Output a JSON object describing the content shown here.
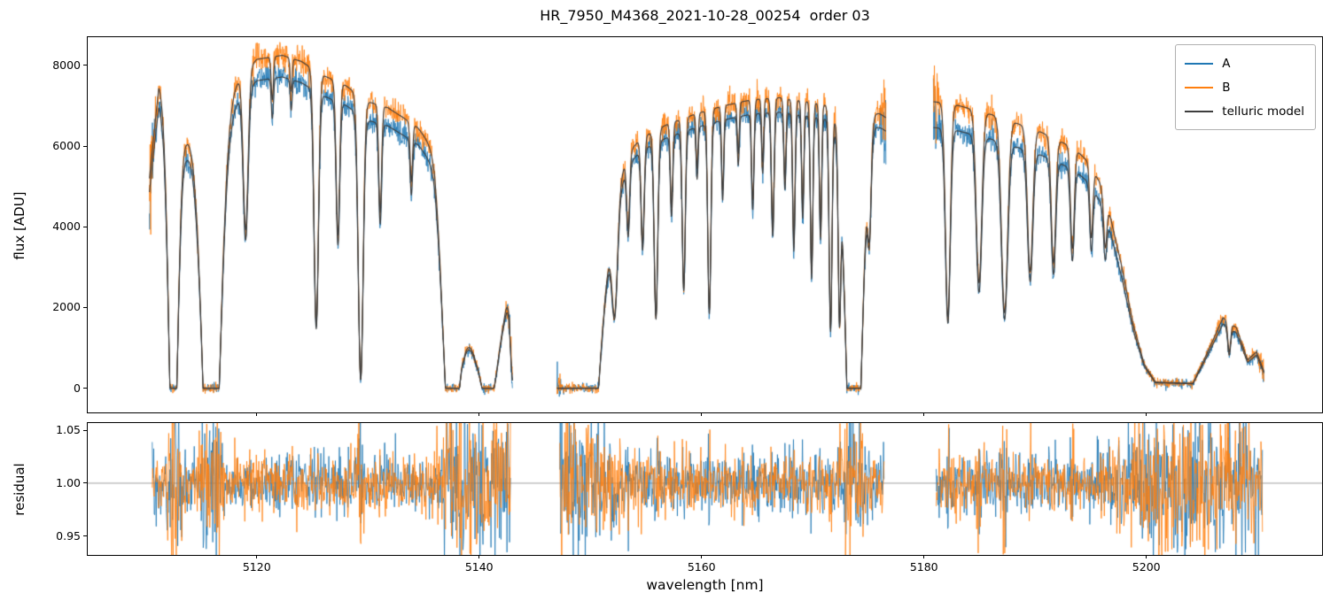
{
  "figure": {
    "title": "HR_7950_M4368_2021-10-28_00254  order 03",
    "xlabel": "wavelength [nm]",
    "flux_ylabel": "flux [ADU]",
    "residual_ylabel": "residual",
    "background": "#ffffff",
    "spine_color": "#000000"
  },
  "legend": {
    "entries": [
      {
        "label": "A",
        "color": "#1f77b4"
      },
      {
        "label": "B",
        "color": "#ff7f0e"
      },
      {
        "label": "telluric model",
        "color": "#3d3d3d"
      }
    ]
  },
  "chart_data": {
    "type": "line",
    "title": "HR_7950_M4368_2021-10-28_00254  order 03",
    "xlabel": "wavelength [nm]",
    "xlim": [
      5104.8,
      5215.8
    ],
    "xticks": [
      {
        "v": 5120,
        "label": "5120"
      },
      {
        "v": 5140,
        "label": "5140"
      },
      {
        "v": 5160,
        "label": "5160"
      },
      {
        "v": 5180,
        "label": "5180"
      },
      {
        "v": 5200,
        "label": "5200"
      }
    ],
    "panels": [
      {
        "name": "flux",
        "ylabel": "flux [ADU]",
        "ylim": [
          -600,
          8700
        ],
        "yticks": [
          {
            "v": 0,
            "label": "0"
          },
          {
            "v": 2000,
            "label": "2000"
          },
          {
            "v": 4000,
            "label": "4000"
          },
          {
            "v": 6000,
            "label": "6000"
          },
          {
            "v": 8000,
            "label": "8000"
          }
        ],
        "grid": false
      },
      {
        "name": "residual",
        "ylabel": "residual",
        "ylim": [
          0.932,
          1.057
        ],
        "yticks": [
          {
            "v": 0.95,
            "label": "0.95"
          },
          {
            "v": 1.0,
            "label": "1.00"
          },
          {
            "v": 1.05,
            "label": "1.05"
          }
        ],
        "refline": 1.0,
        "refline_color": "#888888",
        "grid": false
      }
    ],
    "series": [
      {
        "name": "A",
        "color": "#1f77b4",
        "kind": "observed"
      },
      {
        "name": "B",
        "color": "#ff7f0e",
        "kind": "observed"
      },
      {
        "name": "telluric model",
        "color": "#3d3d3d",
        "kind": "model"
      }
    ],
    "a_to_b_ratio": [
      0.935,
      0.95,
      0.91
    ],
    "segments": [
      {
        "xstart": 5110.35,
        "xend": 5143.0,
        "envelope": [
          [
            5110.35,
            5200
          ],
          [
            5111.2,
            7500
          ],
          [
            5112.6,
            6300
          ],
          [
            5113.7,
            6250
          ],
          [
            5116.0,
            6900
          ],
          [
            5118.5,
            7700
          ],
          [
            5120.0,
            8150
          ],
          [
            5122.3,
            8250
          ],
          [
            5124.0,
            8100
          ],
          [
            5126.0,
            7750
          ],
          [
            5128.0,
            7500
          ],
          [
            5130.0,
            7100
          ],
          [
            5131.8,
            6950
          ],
          [
            5133.2,
            6700
          ],
          [
            5134.5,
            6450
          ],
          [
            5136.0,
            5900
          ],
          [
            5137.5,
            3800
          ],
          [
            5138.6,
            1500
          ],
          [
            5139.7,
            900
          ],
          [
            5141.2,
            800
          ],
          [
            5142.2,
            1800
          ],
          [
            5142.7,
            2600
          ],
          [
            5143.0,
            1500
          ]
        ],
        "lines": [
          [
            5112.5,
            1.35,
            0.4
          ],
          [
            5115.9,
            1.6,
            0.75
          ],
          [
            5119.0,
            0.5,
            0.22
          ],
          [
            5121.4,
            0.13,
            0.1
          ],
          [
            5123.1,
            0.1,
            0.09
          ],
          [
            5125.35,
            0.8,
            0.2
          ],
          [
            5127.3,
            0.5,
            0.16
          ],
          [
            5129.35,
            0.97,
            0.22
          ],
          [
            5131.1,
            0.38,
            0.13
          ],
          [
            5133.9,
            0.22,
            0.11
          ],
          [
            5137.6,
            1.5,
            0.7
          ],
          [
            5140.8,
            1.5,
            0.6
          ],
          [
            5143.15,
            1.0,
            0.3
          ]
        ]
      },
      {
        "xstart": 5147.0,
        "xend": 5176.6,
        "envelope": [
          [
            5147.0,
            5300
          ],
          [
            5150.5,
            5500
          ],
          [
            5152.5,
            5800
          ],
          [
            5154.5,
            6200
          ],
          [
            5157.0,
            6550
          ],
          [
            5159.5,
            6800
          ],
          [
            5162.0,
            7000
          ],
          [
            5164.5,
            7150
          ],
          [
            5167.0,
            7200
          ],
          [
            5169.5,
            7100
          ],
          [
            5171.5,
            7000
          ],
          [
            5173.0,
            6900
          ],
          [
            5174.5,
            6700
          ],
          [
            5175.6,
            6900
          ],
          [
            5176.6,
            6700
          ]
        ],
        "lines": [
          [
            5148.6,
            2.2,
            1.7
          ],
          [
            5152.2,
            0.45,
            0.25
          ],
          [
            5153.4,
            0.3,
            0.13
          ],
          [
            5154.7,
            0.42,
            0.14
          ],
          [
            5155.9,
            0.72,
            0.16
          ],
          [
            5157.3,
            0.32,
            0.11
          ],
          [
            5158.4,
            0.62,
            0.14
          ],
          [
            5159.6,
            0.2,
            0.09
          ],
          [
            5160.7,
            0.72,
            0.14
          ],
          [
            5161.9,
            0.3,
            0.1
          ],
          [
            5163.3,
            0.18,
            0.09
          ],
          [
            5164.6,
            0.35,
            0.11
          ],
          [
            5165.5,
            0.22,
            0.09
          ],
          [
            5166.4,
            0.45,
            0.12
          ],
          [
            5167.5,
            0.28,
            0.1
          ],
          [
            5168.3,
            0.5,
            0.11
          ],
          [
            5169.1,
            0.38,
            0.1
          ],
          [
            5169.9,
            0.6,
            0.11
          ],
          [
            5170.7,
            0.45,
            0.1
          ],
          [
            5171.6,
            0.78,
            0.13
          ],
          [
            5172.4,
            0.55,
            0.11
          ],
          [
            5173.7,
            1.6,
            0.65
          ],
          [
            5175.1,
            0.3,
            0.15
          ]
        ]
      },
      {
        "xstart": 5180.85,
        "xend": 5210.6,
        "envelope": [
          [
            5180.85,
            7100
          ],
          [
            5182.5,
            7050
          ],
          [
            5184.5,
            6900
          ],
          [
            5186.5,
            6750
          ],
          [
            5188.5,
            6550
          ],
          [
            5190.5,
            6350
          ],
          [
            5192.0,
            6150
          ],
          [
            5193.5,
            5950
          ],
          [
            5194.8,
            5600
          ],
          [
            5195.8,
            5100
          ],
          [
            5196.8,
            4200
          ],
          [
            5197.8,
            3000
          ],
          [
            5198.8,
            1600
          ],
          [
            5199.8,
            600
          ],
          [
            5200.8,
            150
          ],
          [
            5204.2,
            120
          ],
          [
            5205.6,
            950
          ],
          [
            5206.9,
            1750
          ],
          [
            5208.1,
            1500
          ],
          [
            5209.1,
            700
          ],
          [
            5209.9,
            900
          ],
          [
            5210.6,
            400
          ]
        ],
        "lines": [
          [
            5182.15,
            0.75,
            0.22
          ],
          [
            5184.95,
            0.62,
            0.25
          ],
          [
            5187.25,
            0.72,
            0.28
          ],
          [
            5189.55,
            0.55,
            0.24
          ],
          [
            5191.65,
            0.5,
            0.2
          ],
          [
            5193.35,
            0.42,
            0.17
          ],
          [
            5195.05,
            0.32,
            0.14
          ],
          [
            5196.3,
            0.25,
            0.14
          ],
          [
            5207.45,
            0.45,
            0.13
          ]
        ]
      }
    ],
    "noise": {
      "seed": 42,
      "flux_step": 0.03,
      "residual_step": 0.045,
      "additive": 55,
      "multiplicative": 0.016,
      "edge_boost": 3.2,
      "edge_width": 0.7,
      "residual_base": 0.014,
      "residual_extra": 0.024
    }
  }
}
